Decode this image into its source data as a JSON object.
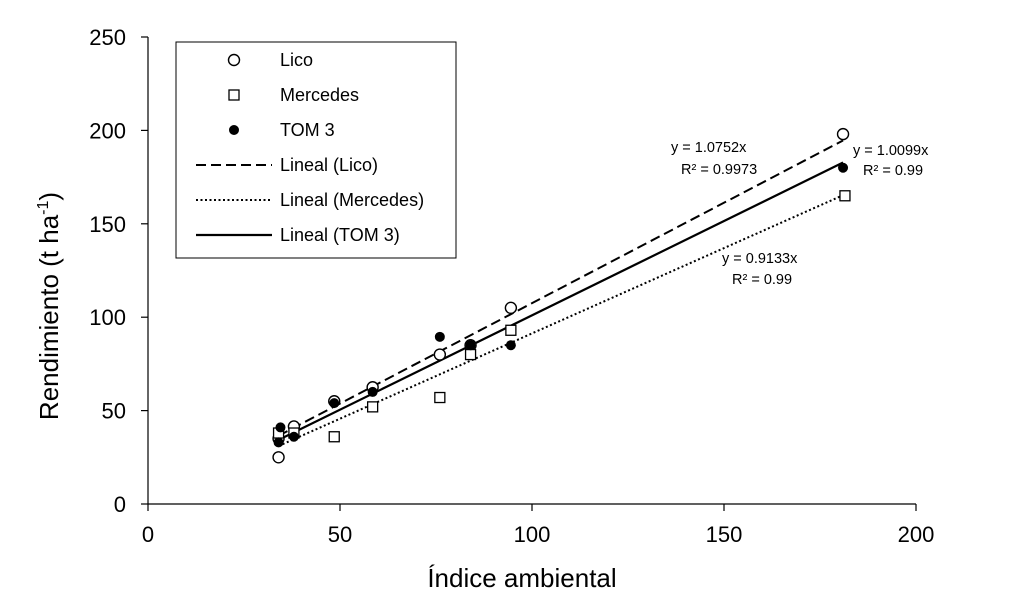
{
  "chart_data": {
    "type": "scatter",
    "title": "",
    "xlabel": "Índice ambiental",
    "ylabel": {
      "base": "Rendimiento (t ha",
      "superscript": "-1",
      "close": ")"
    },
    "xlim": [
      0,
      200
    ],
    "ylim": [
      0,
      250
    ],
    "x_ticks": [
      0,
      50,
      100,
      150,
      200
    ],
    "y_ticks": [
      0,
      50,
      100,
      150,
      200,
      250
    ],
    "x_tick_labels": [
      "0",
      "50",
      "100",
      "150",
      "200"
    ],
    "y_tick_labels": [
      "0",
      "50",
      "100",
      "150",
      "200",
      "250"
    ],
    "grid": false,
    "legend_position": "top-left",
    "series": [
      {
        "name": "Lico",
        "marker": "open-circle",
        "x": [
          34,
          34,
          38,
          48.5,
          58.5,
          76,
          84,
          94.5,
          181
        ],
        "y": [
          25,
          35,
          41.5,
          55,
          62.5,
          80,
          85,
          105,
          198
        ]
      },
      {
        "name": "Mercedes",
        "marker": "open-square",
        "x": [
          34,
          38,
          48.5,
          58.5,
          76,
          84,
          94.5,
          181.5
        ],
        "y": [
          38,
          38,
          36,
          52,
          57,
          80,
          93,
          165
        ]
      },
      {
        "name": "TOM 3",
        "marker": "filled-circle",
        "x": [
          34,
          34.5,
          38,
          48.5,
          58.5,
          76,
          84,
          94.5,
          181
        ],
        "y": [
          33,
          41,
          36,
          54,
          60,
          89.5,
          85,
          85,
          180
        ]
      }
    ],
    "trendlines": [
      {
        "name": "Lineal (Lico)",
        "style": "dashed",
        "slope": 1.0752,
        "x_range": [
          34,
          181
        ],
        "equation": "y = 1.0752x",
        "r2": "R² = 0.9973"
      },
      {
        "name": "Lineal (Mercedes)",
        "style": "dotted",
        "slope": 0.9133,
        "x_range": [
          34,
          181.5
        ],
        "equation": "y = 0.9133x",
        "r2": "R² = 0.99"
      },
      {
        "name": "Lineal (TOM 3)",
        "style": "solid",
        "slope": 1.0099,
        "x_range": [
          34,
          181
        ],
        "equation": "y = 1.0099x",
        "r2": "R² = 0.99"
      }
    ],
    "legend": [
      "Lico",
      "Mercedes",
      "TOM 3",
      "Lineal (Lico)",
      "Lineal (Mercedes)",
      "Lineal (TOM 3)"
    ]
  }
}
